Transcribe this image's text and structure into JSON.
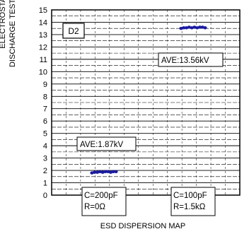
{
  "chart_data": {
    "type": "scatter",
    "ylabel_line1": "ELECTROSTATIC",
    "ylabel_line2": "DISCHARGE TEST ESD(kV)",
    "xlabel": "ESD DISPERSION MAP",
    "panel_label": "D2",
    "ylim": [
      0,
      15
    ],
    "yticks": [
      "0",
      "1",
      "2",
      "3",
      "4",
      "5",
      "6",
      "7",
      "8",
      "9",
      "10",
      "11",
      "12",
      "13",
      "14",
      "15"
    ],
    "grid": true,
    "groups": [
      {
        "condition": [
          "C=200pF",
          "R=0Ω"
        ],
        "average_label": "AVE:1.87kV",
        "values": [
          1.8,
          1.85,
          1.85,
          1.9,
          1.85,
          1.9,
          1.9,
          1.85,
          1.9,
          1.9
        ]
      },
      {
        "condition": [
          "C=100pF",
          "R=1.5kΩ"
        ],
        "average_label": "AVE:13.56kV",
        "values": [
          13.5,
          13.55,
          13.55,
          13.6,
          13.55,
          13.6,
          13.55,
          13.6,
          13.6,
          13.55
        ]
      }
    ],
    "marker_color": "#1a1aa0"
  }
}
